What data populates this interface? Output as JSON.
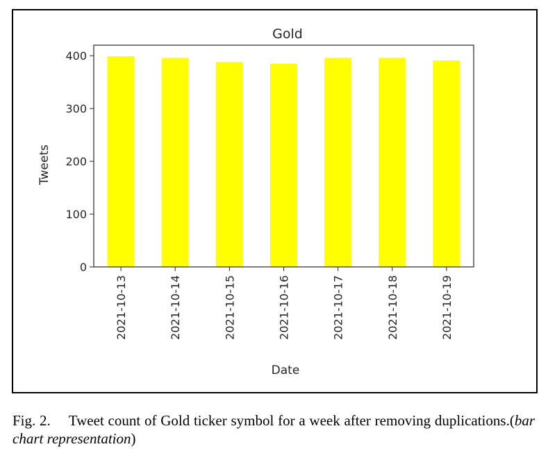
{
  "chart_data": {
    "type": "bar",
    "title": "Gold",
    "xlabel": "Date",
    "ylabel": "Tweets",
    "categories": [
      "2021-10-13",
      "2021-10-14",
      "2021-10-15",
      "2021-10-16",
      "2021-10-17",
      "2021-10-18",
      "2021-10-19"
    ],
    "values": [
      399,
      396,
      388,
      385,
      396,
      396,
      391
    ],
    "ylim": [
      0,
      420
    ],
    "yticks": [
      0,
      100,
      200,
      300,
      400
    ],
    "bar_color": "#ffff00",
    "grid": false
  },
  "caption": {
    "label": "Fig. 2.",
    "text": "Tweet count of Gold ticker symbol for a week after removing duplications.(",
    "italic": "bar chart representation",
    "close": ")"
  }
}
